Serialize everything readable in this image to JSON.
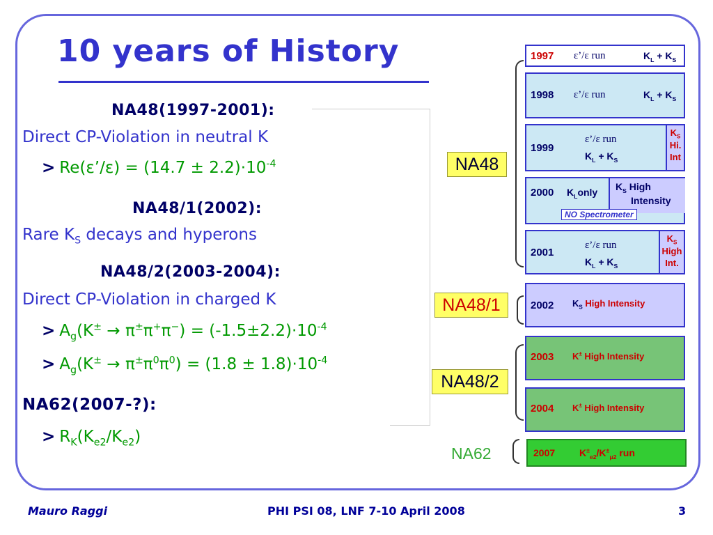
{
  "slide": {
    "title": "10 years of History",
    "sections": [
      {
        "header": "NA48(1997-2001):",
        "line": "Direct CP-Violation in neutral K"
      },
      {
        "header": "NA48/1(2002):",
        "line_pre": "Rare K",
        "line_sub": "S",
        "line_post": " decays and hyperons"
      },
      {
        "header": "NA48/2(2003-2004):",
        "line": "Direct CP-Violation in charged K"
      },
      {
        "header": "NA62(2007-?):"
      }
    ],
    "bullet_mark": ">",
    "bullets": {
      "b1_pre": "Re(ε’/ε) = (14.7 ± 2.2)·10",
      "b1_exp": "-4",
      "b2_a": "A",
      "b2_g": "g",
      "b2_mid": "(K",
      "b2_pm": "±",
      "b2_arrow": " → π",
      "b2_pm2": "±",
      "b2_pi": "π",
      "b2_plus": "+",
      "b2_pi2": "π",
      "b2_minus": "−",
      "b2_post": ") = (-1.5±2.2)·10",
      "b2_exp": "-4",
      "b3_a": "A",
      "b3_g": "g",
      "b3_mid": "(K",
      "b3_pm": "±",
      "b3_arrow": " → π",
      "b3_pm2": "±",
      "b3_pi": "π",
      "b3_zero": "0",
      "b3_pi2": "π",
      "b3_zero2": "0",
      "b3_post": ") = (1.8 ± 1.8)·10",
      "b3_exp": "-4",
      "b4_r": "R",
      "b4_k": "K",
      "b4_mid": "(K",
      "b4_e2": "e2",
      "b4_slash": "/K",
      "b4_e2b": "e2",
      "b4_close": ")"
    },
    "years": {
      "y1997": {
        "year": "1997",
        "run": "ε’/ε run",
        "kk": "K",
        "kk_l": "L",
        "kk_mid": " + K",
        "kk_s": "S"
      },
      "y1998": {
        "year": "1998",
        "run": "ε’/ε run",
        "kk": "K",
        "kk_l": "L",
        "kk_mid": " + K",
        "kk_s": "S"
      },
      "y1999": {
        "year": "1999",
        "run": "ε’/ε run",
        "kk": "K",
        "kk_l": "L",
        "kk_mid": " + K",
        "kk_s": "S",
        "side_k": "K",
        "side_s": "S",
        "side_1": "Hi.",
        "side_2": "Int"
      },
      "y2000": {
        "year": "2000",
        "left_k": "K",
        "left_l": "L",
        "left_txt": "only",
        "right_k": "K",
        "right_s": "S",
        "right_txt1": "  High",
        "right_txt2": "Intensity",
        "nospec": "NO Spectrometer"
      },
      "y2001": {
        "year": "2001",
        "run": "ε’/ε run",
        "kk": "K",
        "kk_l": "L",
        "kk_mid": " + K",
        "kk_s": "S",
        "side_k": "K",
        "side_s": "S",
        "side_1": "High",
        "side_2": "Int."
      },
      "y2002": {
        "year": "2002",
        "k": "K",
        "s": "S",
        "txt": "  High Intensity"
      },
      "y2003": {
        "year": "2003",
        "k": "K",
        "pm": "±",
        "txt": "  High Intensity"
      },
      "y2004": {
        "year": "2004",
        "k": "K",
        "pm": "±",
        "txt": "  High Intensity"
      },
      "y2007": {
        "year": "2007",
        "k": "K",
        "pm": "±",
        "e2": "e2",
        "slash": "/K",
        "pm2": "±",
        "mu2": "μ2",
        "run": " run"
      }
    },
    "labels": {
      "na48": "NA48",
      "na481": "NA48/1",
      "na482": "NA48/2",
      "na62": "NA62"
    },
    "footer": {
      "author": "Mauro Raggi",
      "event": "PHI PSI 08, LNF 7-10 April 2008",
      "page": "3"
    },
    "colors": {
      "accent": "#3333cc",
      "green": "#009900",
      "header": "#000066",
      "yellow": "#ffff66",
      "lavender": "#ccccff",
      "lightblue": "#cce8f4",
      "boxgreen": "#77c477",
      "brightgreen": "#33cc33"
    }
  }
}
